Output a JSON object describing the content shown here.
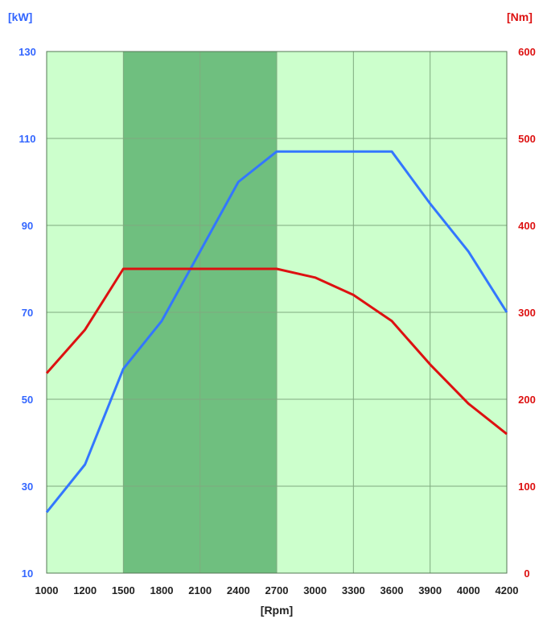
{
  "chart_data": {
    "type": "line",
    "title": "",
    "xlabel": "[Rpm]",
    "y_left_label": "[kW]",
    "y_right_label": "[Nm]",
    "x_ticks": [
      "1000",
      "1200",
      "1500",
      "1800",
      "2100",
      "2400",
      "2700",
      "3000",
      "3300",
      "3600",
      "3900",
      "4000",
      "4200"
    ],
    "y_left_ticks": [
      "10",
      "30",
      "50",
      "70",
      "90",
      "110",
      "130"
    ],
    "y_right_ticks": [
      "0",
      "100",
      "200",
      "300",
      "400",
      "500",
      "600"
    ],
    "y_left_range": [
      10,
      130
    ],
    "y_right_range": [
      0,
      600
    ],
    "highlight_band": {
      "from": "1500",
      "to": "2700",
      "color": "#66bb77"
    },
    "grid": true,
    "colors": {
      "plot_background": "#ccffcc",
      "band": "#6fbf7f",
      "grid": "#7faa7f",
      "power": "#3377ff",
      "torque": "#dd1111",
      "left_axis_text": "#3366ff",
      "right_axis_text": "#dd1111",
      "x_axis_text": "#222222"
    },
    "series": [
      {
        "key": "power",
        "axis": "left",
        "x": [
          "1000",
          "1200",
          "1500",
          "1800",
          "2100",
          "2400",
          "2700",
          "3000",
          "3300",
          "3600",
          "3900",
          "4000",
          "4200"
        ],
        "values": [
          24,
          35,
          57,
          68,
          84,
          100,
          107,
          107,
          107,
          107,
          95,
          84,
          70
        ]
      },
      {
        "key": "torque",
        "axis": "right",
        "x": [
          "1000",
          "1200",
          "1500",
          "1800",
          "2100",
          "2400",
          "2700",
          "3000",
          "3300",
          "3600",
          "3900",
          "4000",
          "4200"
        ],
        "values": [
          230,
          280,
          350,
          350,
          350,
          350,
          350,
          340,
          320,
          290,
          240,
          195,
          160
        ]
      }
    ]
  }
}
